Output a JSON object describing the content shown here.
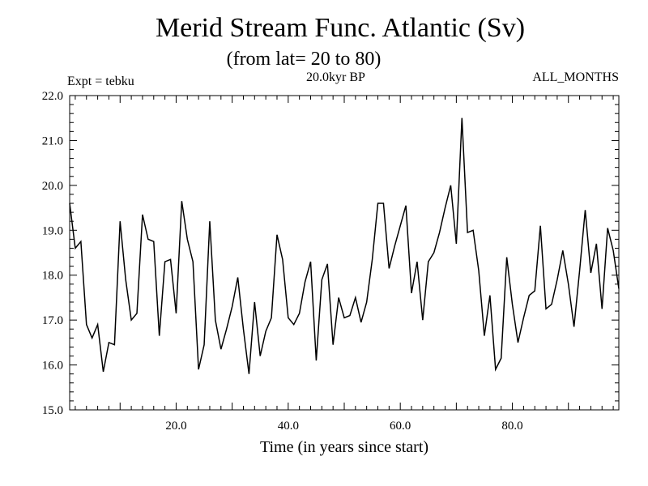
{
  "header": {
    "title": "Merid Stream Func. Atlantic (Sv)",
    "subtitle": "(from lat= 20 to 80)",
    "expt": "Expt = tebku",
    "period": "20.0kyr BP",
    "months": "ALL_MONTHS"
  },
  "chart_data": {
    "type": "line",
    "title": "Merid Stream Func. Atlantic (Sv)",
    "xlabel": "Time (in years since start)",
    "ylabel": "",
    "xlim": [
      1,
      99
    ],
    "ylim": [
      15.0,
      22.0
    ],
    "xticks": [
      20,
      40,
      60,
      80
    ],
    "xtick_labels": [
      "20.0",
      "40.0",
      "60.0",
      "80.0"
    ],
    "yticks": [
      15,
      16,
      17,
      18,
      19,
      20,
      21,
      22
    ],
    "ytick_labels": [
      "15.0",
      "16.0",
      "17.0",
      "18.0",
      "19.0",
      "20.0",
      "21.0",
      "22.0"
    ],
    "series": [
      {
        "name": "tebku",
        "x": [
          1,
          2,
          3,
          4,
          5,
          6,
          7,
          8,
          9,
          10,
          11,
          12,
          13,
          14,
          15,
          16,
          17,
          18,
          19,
          20,
          21,
          22,
          23,
          24,
          25,
          26,
          27,
          28,
          29,
          30,
          31,
          32,
          33,
          34,
          35,
          36,
          37,
          38,
          39,
          40,
          41,
          42,
          43,
          44,
          45,
          46,
          47,
          48,
          49,
          50,
          51,
          52,
          53,
          54,
          55,
          56,
          57,
          58,
          59,
          60,
          61,
          62,
          63,
          64,
          65,
          66,
          67,
          68,
          69,
          70,
          71,
          72,
          73,
          74,
          75,
          76,
          77,
          78,
          79,
          80,
          81,
          82,
          83,
          84,
          85,
          86,
          87,
          88,
          89,
          90,
          91,
          92,
          93,
          94,
          95,
          96,
          97,
          98,
          99
        ],
        "values": [
          19.6,
          18.6,
          18.75,
          16.9,
          16.6,
          16.9,
          15.85,
          16.5,
          16.45,
          19.2,
          17.9,
          17.0,
          17.15,
          19.35,
          18.8,
          18.75,
          16.65,
          18.3,
          18.35,
          17.15,
          19.65,
          18.8,
          18.3,
          15.9,
          16.45,
          19.2,
          17.0,
          16.35,
          16.8,
          17.3,
          17.95,
          16.8,
          15.8,
          17.4,
          16.2,
          16.75,
          17.05,
          18.9,
          18.35,
          17.05,
          16.9,
          17.15,
          17.85,
          18.3,
          16.1,
          17.9,
          18.25,
          16.45,
          17.5,
          17.05,
          17.1,
          17.5,
          16.95,
          17.4,
          18.35,
          19.6,
          19.6,
          18.15,
          18.65,
          19.1,
          19.55,
          17.6,
          18.3,
          17.0,
          18.3,
          18.5,
          18.95,
          19.5,
          20.0,
          18.7,
          21.5,
          18.95,
          19.0,
          18.1,
          16.65,
          17.55,
          15.9,
          16.15,
          18.4,
          17.35,
          16.5,
          17.05,
          17.55,
          17.65,
          19.1,
          17.25,
          17.35,
          17.9,
          18.55,
          17.8,
          16.85,
          18.1,
          19.45,
          18.05,
          18.7,
          17.25,
          19.05,
          18.55,
          17.7
        ]
      }
    ]
  }
}
